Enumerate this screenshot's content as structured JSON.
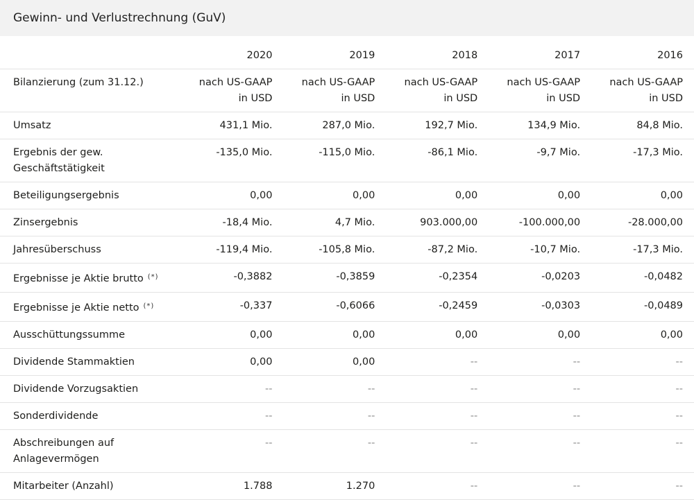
{
  "title": "Gewinn- und Verlustrechnung (GuV)",
  "columns": [
    "2020",
    "2019",
    "2018",
    "2017",
    "2016"
  ],
  "rows": [
    {
      "label": "Bilanzierung (zum 31.12.)",
      "footnote": "",
      "values": [
        "nach US-GAAP in USD",
        "nach US-GAAP in USD",
        "nach US-GAAP in USD",
        "nach US-GAAP in USD",
        "nach US-GAAP in USD"
      ]
    },
    {
      "label": "Umsatz",
      "footnote": "",
      "values": [
        "431,1 Mio.",
        "287,0 Mio.",
        "192,7 Mio.",
        "134,9 Mio.",
        "84,8 Mio."
      ]
    },
    {
      "label": "Ergebnis der gew. Geschäftstätigkeit",
      "footnote": "",
      "values": [
        "-135,0 Mio.",
        "-115,0 Mio.",
        "-86,1 Mio.",
        "-9,7 Mio.",
        "-17,3 Mio."
      ]
    },
    {
      "label": "Beteiligungsergebnis",
      "footnote": "",
      "values": [
        "0,00",
        "0,00",
        "0,00",
        "0,00",
        "0,00"
      ]
    },
    {
      "label": "Zinsergebnis",
      "footnote": "",
      "values": [
        "-18,4 Mio.",
        "4,7 Mio.",
        "903.000,00",
        "-100.000,00",
        "-28.000,00"
      ]
    },
    {
      "label": "Jahresüberschuss",
      "footnote": "",
      "values": [
        "-119,4 Mio.",
        "-105,8 Mio.",
        "-87,2 Mio.",
        "-10,7 Mio.",
        "-17,3 Mio."
      ]
    },
    {
      "label": "Ergebnisse je Aktie brutto",
      "footnote": "(*)",
      "values": [
        "-0,3882",
        "-0,3859",
        "-0,2354",
        "-0,0203",
        "-0,0482"
      ]
    },
    {
      "label": "Ergebnisse je Aktie netto",
      "footnote": "(*)",
      "values": [
        "-0,337",
        "-0,6066",
        "-0,2459",
        "-0,0303",
        "-0,0489"
      ]
    },
    {
      "label": "Ausschüttungssumme",
      "footnote": "",
      "values": [
        "0,00",
        "0,00",
        "0,00",
        "0,00",
        "0,00"
      ]
    },
    {
      "label": "Dividende Stammaktien",
      "footnote": "",
      "values": [
        "0,00",
        "0,00",
        "--",
        "--",
        "--"
      ]
    },
    {
      "label": "Dividende Vorzugsaktien",
      "footnote": "",
      "values": [
        "--",
        "--",
        "--",
        "--",
        "--"
      ]
    },
    {
      "label": "Sonderdividende",
      "footnote": "",
      "values": [
        "--",
        "--",
        "--",
        "--",
        "--"
      ]
    },
    {
      "label": "Abschreibungen auf Anlagevermögen",
      "footnote": "",
      "values": [
        "--",
        "--",
        "--",
        "--",
        "--"
      ]
    },
    {
      "label": "Mitarbeiter (Anzahl)",
      "footnote": "",
      "values": [
        "1.788",
        "1.270",
        "--",
        "--",
        "--"
      ]
    }
  ]
}
